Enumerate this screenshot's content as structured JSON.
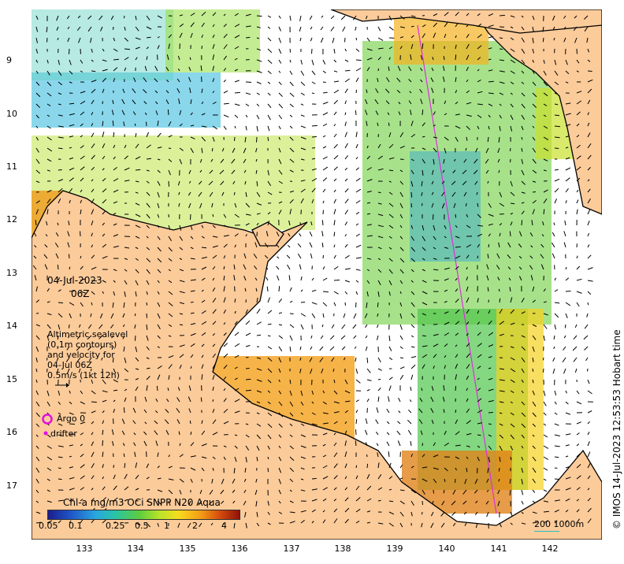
{
  "map": {
    "date_label": "04-Jul-2023",
    "time_label": "06Z",
    "sealevel_note": [
      "Altimetric sealevel",
      "(0.1m contours)",
      "and velocity for",
      "04-Jul 06Z",
      "0.5m/s (1kt 12h)"
    ],
    "legend": {
      "argo_label": "Argo 0",
      "drifter_label": "drifter",
      "argo_color": "#e010e0",
      "drifter_color": "#e010e0"
    },
    "colorbar": {
      "title": "Chl-a mg/m3 OCi SNPP N20 Aqua",
      "ticks": [
        "0.05",
        "0.1",
        "0.25",
        "0.5",
        "1",
        "2",
        "4"
      ]
    },
    "scale_label": "200  1000m",
    "credit": "© IMOS 14-Jul-2023 12:53:53 Hobart time",
    "lat_ticks": [
      "9",
      "10",
      "11",
      "12",
      "13",
      "14",
      "15",
      "16",
      "17"
    ],
    "lon_ticks": [
      "133",
      "134",
      "135",
      "136",
      "137",
      "138",
      "139",
      "140",
      "141",
      "142"
    ],
    "colors": {
      "land": "#fbcb9a",
      "ocean_nodata": "#ffffff",
      "coast": "#000000",
      "track": "#dd30dd"
    }
  }
}
